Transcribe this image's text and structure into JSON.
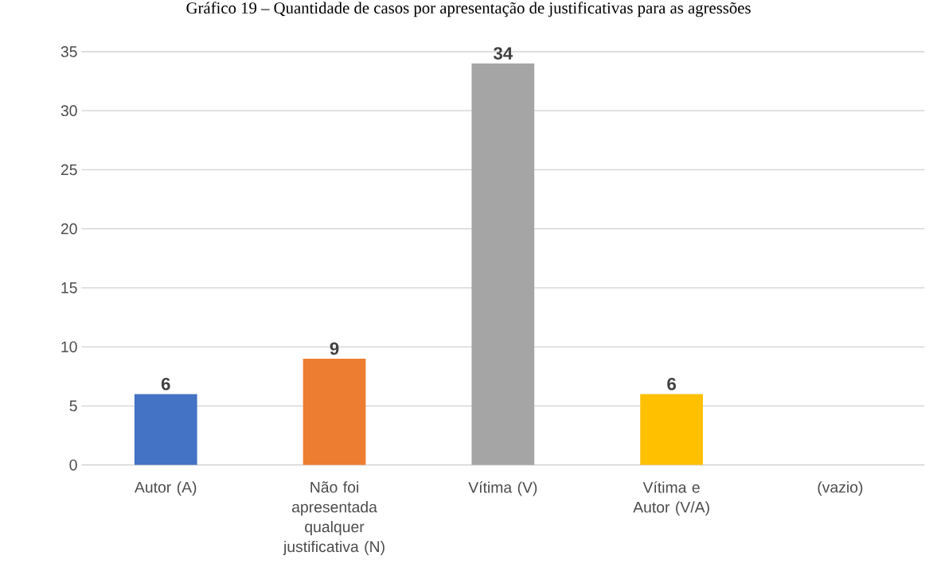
{
  "chart_data": {
    "type": "bar",
    "title": "Gráfico 19 – Quantidade de casos por apresentação de justificativas para as agressões",
    "categories": [
      "Autor (A)",
      "Não foi apresentada qualquer justificativa (N)",
      "Vítima (V)",
      "Vítima e Autor (V/A)",
      "(vazio)"
    ],
    "values": [
      6,
      9,
      34,
      6,
      null
    ],
    "colors": [
      "#4472c4",
      "#ed7d31",
      "#a5a5a5",
      "#ffc000",
      null
    ],
    "ylim": [
      0,
      35
    ],
    "yticks": [
      0,
      5,
      10,
      15,
      20,
      25,
      30,
      35
    ],
    "grid": "y",
    "data_labels": true
  }
}
